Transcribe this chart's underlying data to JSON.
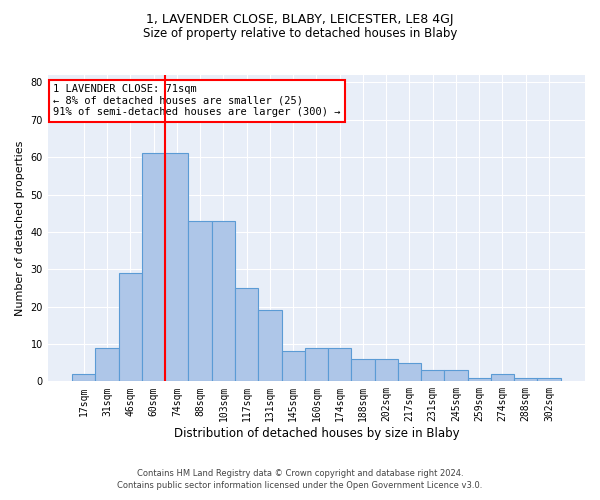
{
  "title": "1, LAVENDER CLOSE, BLABY, LEICESTER, LE8 4GJ",
  "subtitle": "Size of property relative to detached houses in Blaby",
  "xlabel": "Distribution of detached houses by size in Blaby",
  "ylabel": "Number of detached properties",
  "categories": [
    "17sqm",
    "31sqm",
    "46sqm",
    "60sqm",
    "74sqm",
    "88sqm",
    "103sqm",
    "117sqm",
    "131sqm",
    "145sqm",
    "160sqm",
    "174sqm",
    "188sqm",
    "202sqm",
    "217sqm",
    "231sqm",
    "245sqm",
    "259sqm",
    "274sqm",
    "288sqm",
    "302sqm"
  ],
  "values": [
    2,
    9,
    29,
    61,
    61,
    43,
    43,
    25,
    19,
    8,
    9,
    9,
    6,
    6,
    5,
    3,
    3,
    1,
    2,
    1,
    1
  ],
  "bar_color": "#aec6e8",
  "bar_edge_color": "#5b9bd5",
  "bg_color": "#e8eef8",
  "grid_color": "#ffffff",
  "vline_x_index": 3,
  "vline_color": "red",
  "annotation_text": "1 LAVENDER CLOSE: 71sqm\n← 8% of detached houses are smaller (25)\n91% of semi-detached houses are larger (300) →",
  "annotation_box_color": "white",
  "annotation_box_edge": "red",
  "ylim": [
    0,
    82
  ],
  "yticks": [
    0,
    10,
    20,
    30,
    40,
    50,
    60,
    70,
    80
  ],
  "title_fontsize": 9,
  "subtitle_fontsize": 8.5,
  "xlabel_fontsize": 8.5,
  "ylabel_fontsize": 8,
  "tick_fontsize": 7,
  "annotation_fontsize": 7.5,
  "footer_fontsize": 6,
  "footer1": "Contains HM Land Registry data © Crown copyright and database right 2024.",
  "footer2": "Contains public sector information licensed under the Open Government Licence v3.0."
}
